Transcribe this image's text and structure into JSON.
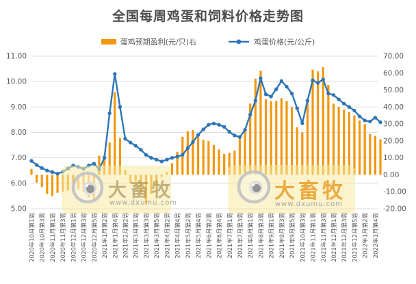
{
  "chart_data": {
    "type": "combo",
    "title": "全国每周鸡蛋和饲料价格走势图",
    "x_tick_labels": [
      "2020年10月第1周",
      "2020年10月第3周",
      "2020年11月第1周",
      "2020年11月第3周",
      "2020年12月第1周",
      "2020年12月第3周",
      "2020年12月第5周",
      "2021年1月第2周",
      "2021年1月第4周",
      "2021年2月第2周",
      "2021年3月第1周",
      "2021年3月第3周",
      "2021年3月第5周",
      "2021年4月第2周",
      "2021年4月第4周",
      "2021年5月第2周",
      "2021年5月第4周",
      "2021年6月第2周",
      "2021年6月第4周",
      "2021年7月第1周",
      "2021年7月第3周",
      "2021年8月第1周",
      "2021年8月第3周",
      "2021年9月第1周",
      "2021年9月第3周",
      "2021年9月第5周",
      "2021年10月第3周",
      "2021年11月第1周",
      "2021年11月第3周",
      "2021年12月第1周",
      "2021年12月第3周",
      "2021年12月第5周",
      "2022年1月第2周",
      "2022年1月第4周"
    ],
    "x_tick_every": 2,
    "left_axis": {
      "min": 5,
      "max": 11,
      "step": 1,
      "tick_labels": [
        "11.00",
        "10.00",
        "9.00",
        "8.00",
        "7.00",
        "6.00",
        "5.00"
      ]
    },
    "right_axis": {
      "min": -20,
      "max": 70,
      "step": 10,
      "tick_labels": [
        "70.00",
        "60.00",
        "50.00",
        "40.00",
        "30.00",
        "20.00",
        "10.00",
        "0.00",
        "-10.00",
        "-20.00"
      ]
    },
    "grid": "horizontal",
    "series": [
      {
        "name": "蛋鸡预期盈利(元/只)右",
        "type": "bar",
        "axis": "right",
        "color": "#F2970E",
        "values": [
          3.5,
          -4.6,
          -7.2,
          -11.3,
          -12.6,
          -10.6,
          -9.9,
          -9.2,
          -9.9,
          -8.6,
          -9.9,
          -13.3,
          -15.3,
          11.3,
          11.9,
          19.0,
          48.6,
          21.7,
          2.9,
          -4.8,
          -3.9,
          -11.3,
          -17.3,
          -11.3,
          -5.9,
          -1.2,
          1.5,
          6.9,
          13.6,
          22.4,
          25.7,
          26.4,
          22.4,
          20.6,
          19.9,
          17.6,
          15.0,
          12.3,
          13.0,
          14.3,
          21.7,
          27.7,
          42.0,
          56.7,
          61.4,
          44.6,
          43.5,
          43.5,
          45.2,
          43.5,
          40.0,
          28.0,
          25.0,
          44.0,
          62.0,
          61.0,
          63.5,
          53.0,
          42.0,
          40.0,
          38.5,
          37.0,
          35.0,
          32.0,
          30.0,
          24.0,
          23.0,
          21.0
        ]
      },
      {
        "name": "鸡蛋价格(元/公斤)",
        "type": "line",
        "axis": "left",
        "color": "#2E75B6",
        "values": [
          6.88,
          6.72,
          6.6,
          6.5,
          6.44,
          6.38,
          6.45,
          6.58,
          6.7,
          6.64,
          6.57,
          6.7,
          6.77,
          6.55,
          7.0,
          8.75,
          10.3,
          9.0,
          7.75,
          7.6,
          7.48,
          7.32,
          7.12,
          7.0,
          6.93,
          6.86,
          6.93,
          7.0,
          7.05,
          7.12,
          7.38,
          7.62,
          7.9,
          8.12,
          8.3,
          8.35,
          8.3,
          8.22,
          8.02,
          7.88,
          7.82,
          8.1,
          8.7,
          9.25,
          10.13,
          9.5,
          9.41,
          9.7,
          10.02,
          9.8,
          9.53,
          8.95,
          8.36,
          9.25,
          10.05,
          9.95,
          10.08,
          9.53,
          9.47,
          9.3,
          9.13,
          9.0,
          8.86,
          8.63,
          8.47,
          8.43,
          8.58,
          8.4
        ]
      }
    ]
  },
  "legend": {
    "items": [
      {
        "label": "蛋鸡预期盈利(元/只)右",
        "color": "#F2970E",
        "marker": "bar"
      },
      {
        "label": "鸡蛋价格(元/公斤)",
        "color": "#2E75B6",
        "marker": "line"
      }
    ]
  },
  "watermarks": [
    {
      "brand": "大畜牧",
      "url": "www.dxumu.com"
    },
    {
      "brand": "大畜牧",
      "url": "www.dxumu.com"
    }
  ],
  "colors": {
    "grid": "#DCDCDC",
    "axis_text": "#595959",
    "title_text": "#4D4D4D",
    "watermark_bg": "#F5E9A0"
  }
}
